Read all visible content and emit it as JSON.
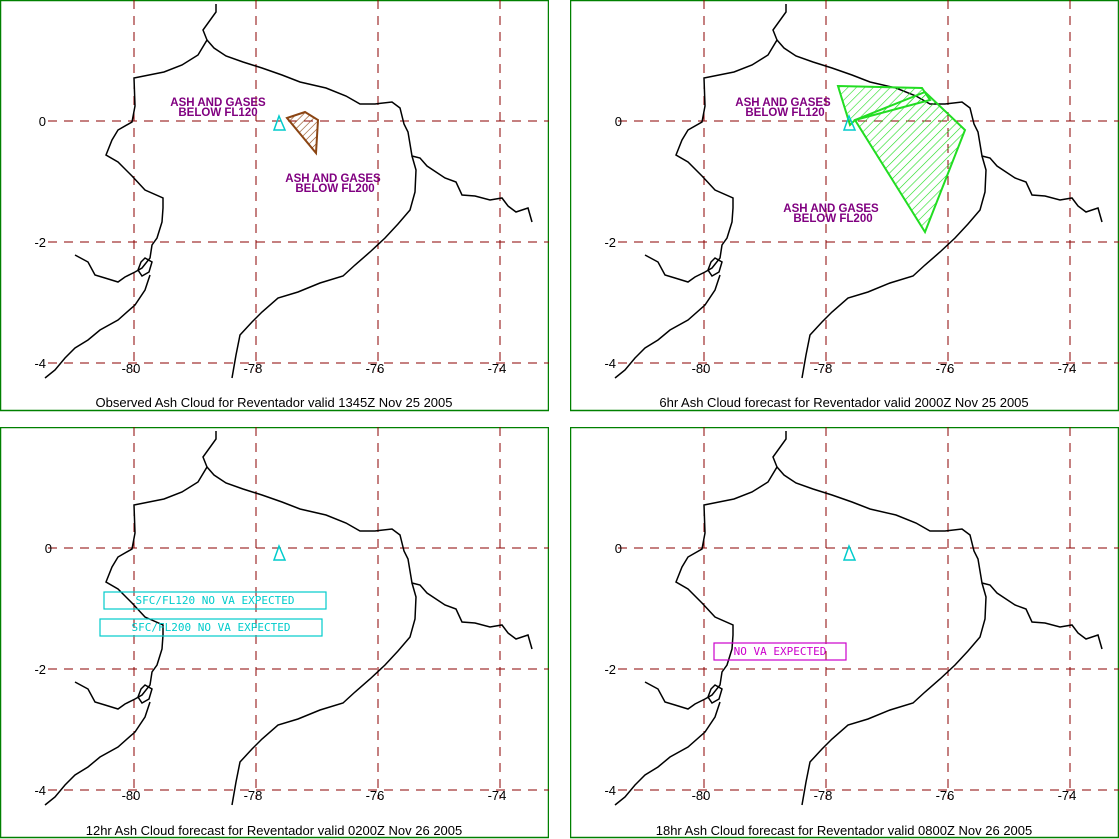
{
  "panels": [
    {
      "title": "Observed Ash Cloud for Reventador valid 1345Z Nov 25 2005",
      "cloud_color": "#8b4513",
      "labels": [
        {
          "line1": "ASH AND GASES",
          "line2": "BELOW FL120"
        },
        {
          "line1": "ASH AND GASES",
          "line2": "BELOW FL200"
        }
      ],
      "boxes": []
    },
    {
      "title": "6hr Ash Cloud forecast for Reventador valid 2000Z Nov 25 2005",
      "cloud_color": "#22dd22",
      "labels": [
        {
          "line1": "ASH AND GASES",
          "line2": "BELOW FL120"
        },
        {
          "line1": "ASH AND GASES",
          "line2": "BELOW FL200"
        }
      ],
      "boxes": []
    },
    {
      "title": "12hr Ash Cloud forecast for Reventador valid 0200Z Nov 26 2005",
      "labels": [],
      "boxes": [
        {
          "text": "SFC/FL120 NO VA EXPECTED",
          "color": "#00cccc"
        },
        {
          "text": "SFC/FL200 NO VA EXPECTED",
          "color": "#00cccc"
        }
      ]
    },
    {
      "title": "18hr Ash Cloud forecast for Reventador valid 0800Z Nov 26 2005",
      "labels": [],
      "boxes": [
        {
          "text": "NO VA EXPECTED",
          "color": "#cc00cc"
        }
      ]
    }
  ],
  "axes": {
    "lon_ticks": [
      "-80",
      "-78",
      "-76",
      "-74"
    ],
    "lat_ticks": [
      "0",
      "-2",
      "-4"
    ]
  },
  "colors": {
    "frame": "#008000",
    "grid": "#8b0000",
    "coast": "#000000",
    "volcano": "#00cccc"
  },
  "volcano_icon": "triangle-icon"
}
